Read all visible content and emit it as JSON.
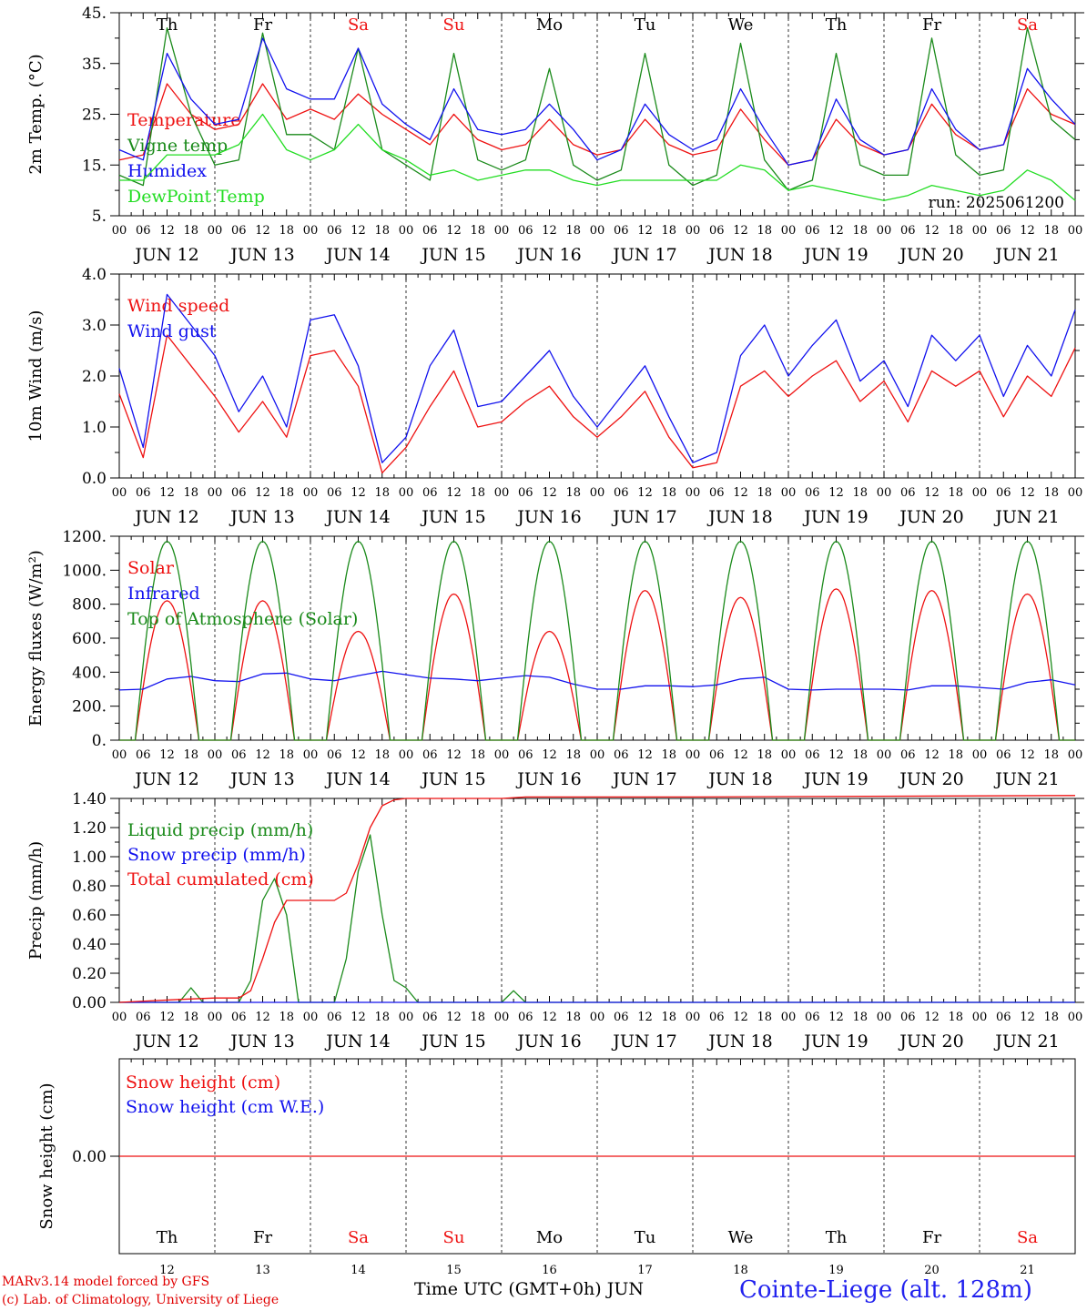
{
  "colors": {
    "red": "#ee1111",
    "green": "#1a8a1a",
    "blue": "#1111ee",
    "lime": "#22dd22",
    "weekend": "#ee1111",
    "weekday": "#000000"
  },
  "footer": {
    "credit_line1": "MARv3.14 model forced by GFS",
    "credit_line2": "(c) Lab. of Climatology, University of Liege",
    "x_title": "Time UTC (GMT+0h) JUN",
    "station": "Cointe-Liege (alt. 128m)"
  },
  "chart_data": [
    {
      "type": "line",
      "ylabel": "2m Temp. (°C)",
      "ylim": [
        5,
        45
      ],
      "yticks": [
        5,
        15,
        25,
        35,
        45
      ],
      "ytick_labels": [
        "5.",
        "15.",
        "25.",
        "35.",
        "45."
      ],
      "annotation": "run: 2025061200",
      "day_names": [
        {
          "label": "Th",
          "weekend": false
        },
        {
          "label": "Fr",
          "weekend": false
        },
        {
          "label": "Sa",
          "weekend": true
        },
        {
          "label": "Su",
          "weekend": true
        },
        {
          "label": "Mo",
          "weekend": false
        },
        {
          "label": "Tu",
          "weekend": false
        },
        {
          "label": "We",
          "weekend": false
        },
        {
          "label": "Th",
          "weekend": false
        },
        {
          "label": "Fr",
          "weekend": false
        },
        {
          "label": "Sa",
          "weekend": true
        }
      ],
      "date_labels": [
        "JUN 12",
        "JUN 13",
        "JUN 14",
        "JUN 15",
        "JUN 16",
        "JUN 17",
        "JUN 18",
        "JUN 19",
        "JUN 20",
        "JUN 21"
      ],
      "x_hours": [
        0,
        6,
        12,
        18,
        24,
        30,
        36,
        42,
        48,
        54,
        60,
        66,
        72,
        78,
        84,
        90,
        96,
        102,
        108,
        114,
        120,
        126,
        132,
        138,
        144,
        150,
        156,
        162,
        168,
        174,
        180,
        186,
        192,
        198,
        204,
        210,
        216,
        222,
        228,
        234,
        240
      ],
      "series": [
        {
          "name": "Temperature",
          "color": "red",
          "values": [
            16,
            17,
            31,
            25,
            22,
            23,
            31,
            24,
            26,
            24,
            29,
            25,
            22,
            19,
            25,
            20,
            18,
            19,
            24,
            19,
            17,
            18,
            24,
            19,
            17,
            18,
            26,
            20,
            15,
            16,
            24,
            19,
            17,
            18,
            27,
            21,
            18,
            19,
            30,
            25,
            23
          ]
        },
        {
          "name": "Vigne temp",
          "color": "green",
          "values": [
            13,
            11,
            42,
            25,
            15,
            16,
            41,
            21,
            21,
            18,
            38,
            18,
            15,
            12,
            37,
            16,
            14,
            16,
            34,
            15,
            12,
            14,
            37,
            15,
            11,
            13,
            39,
            16,
            10,
            12,
            37,
            15,
            13,
            13,
            40,
            17,
            13,
            14,
            42,
            24,
            20
          ]
        },
        {
          "name": "Humidex",
          "color": "blue",
          "values": [
            18,
            16,
            37,
            28,
            23,
            24,
            40,
            30,
            28,
            28,
            38,
            27,
            23,
            20,
            30,
            22,
            21,
            22,
            27,
            22,
            16,
            18,
            27,
            21,
            18,
            20,
            30,
            22,
            15,
            16,
            28,
            20,
            17,
            18,
            30,
            22,
            18,
            19,
            34,
            28,
            23
          ]
        },
        {
          "name": "DewPoint Temp",
          "color": "lime",
          "values": [
            12,
            12,
            17,
            17,
            17,
            19,
            25,
            18,
            16,
            18,
            23,
            18,
            16,
            13,
            14,
            12,
            13,
            14,
            14,
            12,
            11,
            12,
            12,
            12,
            12,
            12,
            15,
            14,
            10,
            11,
            10,
            9,
            8,
            9,
            11,
            10,
            9,
            10,
            14,
            12,
            8
          ]
        }
      ]
    },
    {
      "type": "line",
      "ylabel": "10m Wind (m/s)",
      "ylim": [
        0,
        4
      ],
      "yticks": [
        0,
        1,
        2,
        3,
        4
      ],
      "ytick_labels": [
        "0.0",
        "1.0",
        "2.0",
        "3.0",
        "4.0"
      ],
      "date_labels": [
        "JUN 12",
        "JUN 13",
        "JUN 14",
        "JUN 15",
        "JUN 16",
        "JUN 17",
        "JUN 18",
        "JUN 19",
        "JUN 20",
        "JUN 21"
      ],
      "x_hours": [
        0,
        6,
        12,
        18,
        24,
        30,
        36,
        42,
        48,
        54,
        60,
        66,
        72,
        78,
        84,
        90,
        96,
        102,
        108,
        114,
        120,
        126,
        132,
        138,
        144,
        150,
        156,
        162,
        168,
        174,
        180,
        186,
        192,
        198,
        204,
        210,
        216,
        222,
        228,
        234,
        240
      ],
      "series": [
        {
          "name": "Wind speed",
          "color": "red",
          "values": [
            1.65,
            0.4,
            2.8,
            2.2,
            1.6,
            0.9,
            1.5,
            0.8,
            2.4,
            2.5,
            1.8,
            0.1,
            0.6,
            1.4,
            2.1,
            1.0,
            1.1,
            1.5,
            1.8,
            1.2,
            0.8,
            1.2,
            1.7,
            0.8,
            0.2,
            0.3,
            1.8,
            2.1,
            1.6,
            2.0,
            2.3,
            1.5,
            1.9,
            1.1,
            2.1,
            1.8,
            2.1,
            1.2,
            2.0,
            1.6,
            2.55
          ]
        },
        {
          "name": "Wind gust",
          "color": "blue",
          "values": [
            2.15,
            0.6,
            3.6,
            3.0,
            2.4,
            1.3,
            2.0,
            1.0,
            3.1,
            3.2,
            2.2,
            0.3,
            0.8,
            2.2,
            2.9,
            1.4,
            1.5,
            2.0,
            2.5,
            1.6,
            1.0,
            1.6,
            2.2,
            1.2,
            0.3,
            0.5,
            2.4,
            3.0,
            2.0,
            2.6,
            3.1,
            1.9,
            2.3,
            1.4,
            2.8,
            2.3,
            2.8,
            1.6,
            2.6,
            2.0,
            3.3
          ]
        }
      ]
    },
    {
      "type": "line",
      "ylabel": "Energy fluxes (W/m²)",
      "ylim": [
        0,
        1200
      ],
      "yticks": [
        0,
        200,
        400,
        600,
        800,
        1000,
        1200
      ],
      "ytick_labels": [
        "0.",
        "200.",
        "400.",
        "600.",
        "800.",
        "1000.",
        "1200."
      ],
      "date_labels": [
        "JUN 12",
        "JUN 13",
        "JUN 14",
        "JUN 15",
        "JUN 16",
        "JUN 17",
        "JUN 18",
        "JUN 19",
        "JUN 20",
        "JUN 21"
      ],
      "solar_daily_peaks": [
        820,
        820,
        640,
        860,
        640,
        880,
        840,
        890,
        880,
        860
      ],
      "toa_daily_peak": 1170,
      "sunrise_hour": 4,
      "sunset_hour": 20,
      "series": [
        {
          "name": "Solar",
          "color": "red"
        },
        {
          "name": "Infrared",
          "color": "blue",
          "x_hours": [
            0,
            6,
            12,
            18,
            24,
            30,
            36,
            42,
            48,
            54,
            60,
            66,
            72,
            78,
            84,
            90,
            96,
            102,
            108,
            114,
            120,
            126,
            132,
            138,
            144,
            150,
            156,
            162,
            168,
            174,
            180,
            186,
            192,
            198,
            204,
            210,
            216,
            222,
            228,
            234,
            240
          ],
          "values": [
            295,
            300,
            360,
            375,
            350,
            345,
            390,
            395,
            360,
            350,
            380,
            405,
            385,
            365,
            360,
            350,
            365,
            380,
            370,
            330,
            300,
            300,
            320,
            320,
            315,
            325,
            360,
            370,
            300,
            295,
            300,
            300,
            300,
            295,
            320,
            320,
            310,
            300,
            340,
            355,
            325
          ]
        },
        {
          "name": "Top of Atmosphere (Solar)",
          "color": "green"
        }
      ]
    },
    {
      "type": "line",
      "ylabel": "Precip (mm/h)",
      "ylim": [
        0,
        1.4
      ],
      "yticks": [
        0,
        0.2,
        0.4,
        0.6,
        0.8,
        1.0,
        1.2,
        1.4
      ],
      "ytick_labels": [
        "0.00",
        "0.20",
        "0.40",
        "0.60",
        "0.80",
        "1.00",
        "1.20",
        "1.40"
      ],
      "date_labels": [
        "JUN 12",
        "JUN 13",
        "JUN 14",
        "JUN 15",
        "JUN 16",
        "JUN 17",
        "JUN 18",
        "JUN 19",
        "JUN 20",
        "JUN 21"
      ],
      "series": [
        {
          "name": "Liquid precip (mm/h)",
          "color": "green",
          "x_hours": [
            0,
            15,
            18,
            21,
            24,
            30,
            33,
            36,
            39,
            42,
            45,
            48,
            54,
            57,
            60,
            63,
            66,
            69,
            72,
            75,
            84,
            96,
            99,
            102,
            120,
            132,
            240
          ],
          "values": [
            0,
            0,
            0.1,
            0,
            0,
            0,
            0.15,
            0.7,
            0.85,
            0.6,
            0,
            0,
            0,
            0.3,
            0.9,
            1.15,
            0.6,
            0.15,
            0.1,
            0,
            0,
            0,
            0.08,
            0,
            0,
            0,
            0
          ]
        },
        {
          "name": "Snow precip (mm/h)",
          "color": "blue",
          "x_hours": [
            0,
            240
          ],
          "values": [
            0,
            0
          ]
        },
        {
          "name": "Total cumulated (cm)",
          "color": "red",
          "x_hours": [
            0,
            15,
            24,
            30,
            33,
            36,
            39,
            42,
            45,
            54,
            57,
            60,
            63,
            66,
            69,
            72,
            75,
            96,
            102,
            144,
            240
          ],
          "values": [
            0,
            0.02,
            0.03,
            0.03,
            0.08,
            0.3,
            0.55,
            0.7,
            0.7,
            0.7,
            0.75,
            0.95,
            1.2,
            1.35,
            1.39,
            1.4,
            1.4,
            1.4,
            1.41,
            1.41,
            1.42
          ]
        }
      ]
    },
    {
      "type": "line",
      "ylabel": "Snow height (cm)",
      "ylim": [
        -1,
        1
      ],
      "yticks": [
        0
      ],
      "ytick_labels": [
        "0.00"
      ],
      "day_names": [
        {
          "label": "Th",
          "weekend": false
        },
        {
          "label": "Fr",
          "weekend": false
        },
        {
          "label": "Sa",
          "weekend": true
        },
        {
          "label": "Su",
          "weekend": true
        },
        {
          "label": "Mo",
          "weekend": false
        },
        {
          "label": "Tu",
          "weekend": false
        },
        {
          "label": "We",
          "weekend": false
        },
        {
          "label": "Th",
          "weekend": false
        },
        {
          "label": "Fr",
          "weekend": false
        },
        {
          "label": "Sa",
          "weekend": true
        }
      ],
      "day_numbers": [
        "12",
        "13",
        "14",
        "15",
        "16",
        "17",
        "18",
        "19",
        "20",
        "21"
      ],
      "series": [
        {
          "name": "Snow height (cm)",
          "color": "red",
          "x_hours": [
            0,
            240
          ],
          "values": [
            0,
            0
          ]
        },
        {
          "name": "Snow height (cm W.E.)",
          "color": "blue",
          "x_hours": [
            0,
            240
          ],
          "values": []
        }
      ]
    }
  ]
}
